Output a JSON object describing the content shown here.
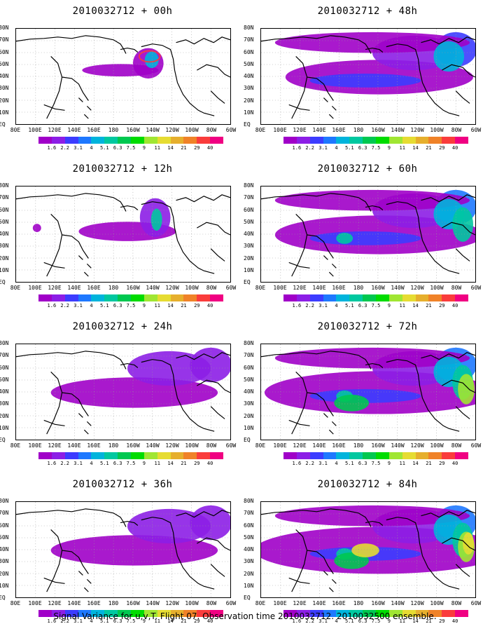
{
  "panels": [
    {
      "title": "2010032712 + 00h",
      "intensity": 0
    },
    {
      "title": "2010032712 + 48h",
      "intensity": 3
    },
    {
      "title": "2010032712 + 12h",
      "intensity": 1
    },
    {
      "title": "2010032712 + 60h",
      "intensity": 4
    },
    {
      "title": "2010032712 + 24h",
      "intensity": 2
    },
    {
      "title": "2010032712 + 72h",
      "intensity": 5
    },
    {
      "title": "2010032712 + 36h",
      "intensity": 2
    },
    {
      "title": "2010032712 + 84h",
      "intensity": 6
    }
  ],
  "lat_labels": [
    "80N",
    "70N",
    "60N",
    "50N",
    "40N",
    "30N",
    "20N",
    "10N",
    "EQ"
  ],
  "lon_labels": [
    "80E",
    "100E",
    "120E",
    "140E",
    "160E",
    "180",
    "160W",
    "140W",
    "120W",
    "100W",
    "80W",
    "60W"
  ],
  "colorbar": {
    "labels": [
      "1.6",
      "2.2",
      "3.1",
      "4",
      "5.1",
      "6.3",
      "7.5",
      "9",
      "11",
      "14",
      "21",
      "29",
      "40"
    ],
    "colors": [
      "#a000c8",
      "#8c1ee6",
      "#3c3cff",
      "#1e78ff",
      "#00b4dc",
      "#00c8a0",
      "#00c850",
      "#00dc00",
      "#a0e632",
      "#e6dc32",
      "#e6af2d",
      "#f08228",
      "#fa3c3c",
      "#f00082"
    ]
  },
  "footer": "Signal Variance for u,v,T. Flight 07. Observation time 2010032712. 2010032500 ensemble."
}
